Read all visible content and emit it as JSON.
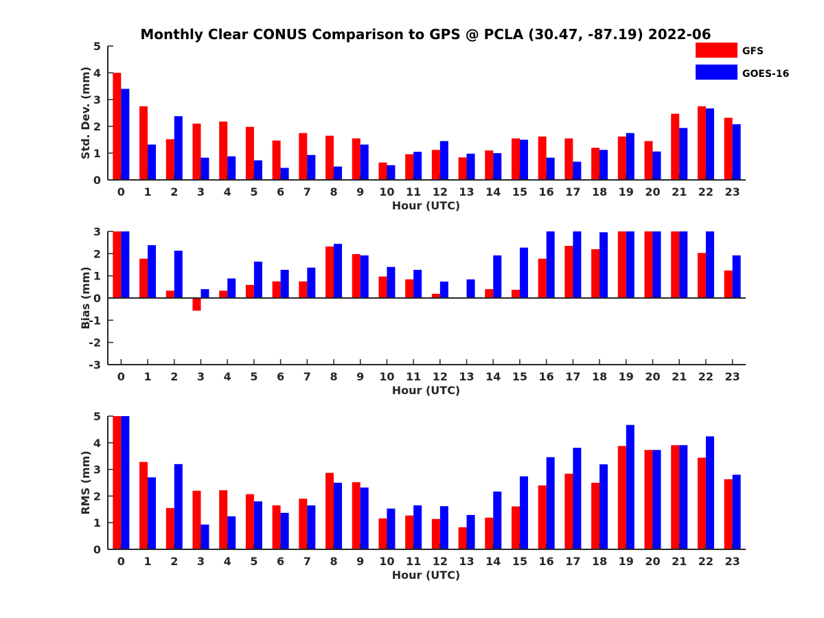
{
  "title": "Monthly Clear CONUS Comparison to GPS @ PCLA (30.47, -87.19) 2022-06",
  "chart_data": [
    {
      "type": "bar",
      "ylabel": "Std. Dev. (mm)",
      "xlabel": "Hour (UTC)",
      "ylim": [
        0,
        5
      ],
      "yticks": [
        0,
        1,
        2,
        3,
        4,
        5
      ],
      "categories": [
        "0",
        "1",
        "2",
        "3",
        "4",
        "5",
        "6",
        "7",
        "8",
        "9",
        "10",
        "11",
        "12",
        "13",
        "14",
        "15",
        "16",
        "17",
        "18",
        "19",
        "20",
        "21",
        "22",
        "23"
      ],
      "series": [
        {
          "name": "GFS",
          "color": "#ff0000",
          "values": [
            4.0,
            2.75,
            1.52,
            2.1,
            2.18,
            1.98,
            1.47,
            1.75,
            1.65,
            1.55,
            0.65,
            0.96,
            1.12,
            0.84,
            1.1,
            1.55,
            1.62,
            1.55,
            1.2,
            1.62,
            1.45,
            2.47,
            2.75,
            2.32
          ]
        },
        {
          "name": "GOES-16",
          "color": "#0000ff",
          "values": [
            3.4,
            1.32,
            2.38,
            0.83,
            0.88,
            0.73,
            0.45,
            0.93,
            0.5,
            1.32,
            0.55,
            1.05,
            1.45,
            0.98,
            1.0,
            1.5,
            0.83,
            0.68,
            1.12,
            1.75,
            1.06,
            1.94,
            2.67,
            2.08
          ]
        }
      ]
    },
    {
      "type": "bar",
      "ylabel": "Bias (mm)",
      "xlabel": "Hour (UTC)",
      "ylim": [
        -3,
        3
      ],
      "yticks": [
        -3,
        -2,
        -1,
        0,
        1,
        2,
        3
      ],
      "categories": [
        "0",
        "1",
        "2",
        "3",
        "4",
        "5",
        "6",
        "7",
        "8",
        "9",
        "10",
        "11",
        "12",
        "13",
        "14",
        "15",
        "16",
        "17",
        "18",
        "19",
        "20",
        "21",
        "22",
        "23"
      ],
      "series": [
        {
          "name": "GFS",
          "color": "#ff0000",
          "values": [
            3.0,
            1.77,
            0.33,
            -0.57,
            0.33,
            0.59,
            0.75,
            0.75,
            2.32,
            1.98,
            0.97,
            0.84,
            0.19,
            -0.03,
            0.4,
            0.37,
            1.77,
            2.35,
            2.2,
            3.0,
            3.0,
            3.0,
            2.03,
            1.24
          ]
        },
        {
          "name": "GOES-16",
          "color": "#0000ff",
          "values": [
            3.0,
            2.38,
            2.13,
            0.4,
            0.88,
            1.64,
            1.27,
            1.37,
            2.44,
            1.92,
            1.4,
            1.27,
            0.74,
            0.84,
            1.92,
            2.27,
            3.0,
            3.0,
            2.96,
            3.0,
            3.0,
            3.0,
            3.0,
            1.92
          ]
        }
      ]
    },
    {
      "type": "bar",
      "ylabel": "RMS (mm)",
      "xlabel": "Hour (UTC)",
      "ylim": [
        0,
        5
      ],
      "yticks": [
        0,
        1,
        2,
        3,
        4,
        5
      ],
      "categories": [
        "0",
        "1",
        "2",
        "3",
        "4",
        "5",
        "6",
        "7",
        "8",
        "9",
        "10",
        "11",
        "12",
        "13",
        "14",
        "15",
        "16",
        "17",
        "18",
        "19",
        "20",
        "21",
        "22",
        "23"
      ],
      "series": [
        {
          "name": "GFS",
          "color": "#ff0000",
          "values": [
            5.0,
            3.28,
            1.55,
            2.2,
            2.22,
            2.07,
            1.65,
            1.9,
            2.87,
            2.52,
            1.16,
            1.27,
            1.14,
            0.83,
            1.19,
            1.61,
            2.4,
            2.84,
            2.5,
            3.88,
            3.73,
            3.91,
            3.44,
            2.63
          ]
        },
        {
          "name": "GOES-16",
          "color": "#0000ff",
          "values": [
            5.0,
            2.7,
            3.2,
            0.93,
            1.24,
            1.8,
            1.37,
            1.65,
            2.5,
            2.32,
            1.53,
            1.65,
            1.62,
            1.29,
            2.17,
            2.74,
            3.46,
            3.81,
            3.19,
            4.67,
            3.73,
            3.91,
            4.24,
            2.8
          ]
        }
      ]
    }
  ],
  "legend": [
    {
      "label": "GFS",
      "color": "#ff0000"
    },
    {
      "label": "GOES-16",
      "color": "#0000ff"
    }
  ]
}
